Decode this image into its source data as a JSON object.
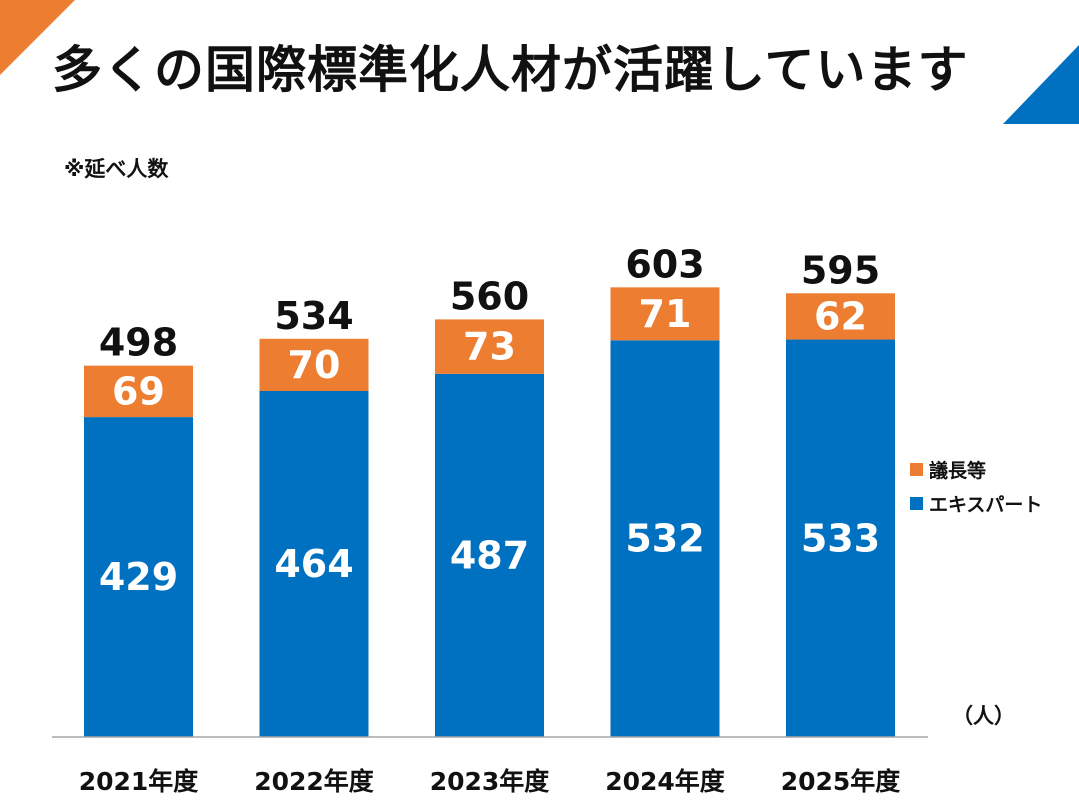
{
  "title": "多くの国際標準化人材が活躍しています",
  "note": "※延べ人数",
  "unit": "（人）",
  "colors": {
    "accent_orange": "#ED7D31",
    "accent_blue": "#0070C0"
  },
  "chart_data": {
    "type": "bar",
    "stacked": true,
    "categories": [
      "2021年度",
      "2022年度",
      "2023年度",
      "2024年度",
      "2025年度"
    ],
    "series": [
      {
        "name": "エキスパート",
        "values": [
          429,
          464,
          487,
          532,
          533
        ],
        "color": "#0070C0"
      },
      {
        "name": "議長等",
        "values": [
          69,
          70,
          73,
          71,
          62
        ],
        "color": "#ED7D31"
      }
    ],
    "totals": [
      498,
      534,
      560,
      603,
      595
    ],
    "legend_order": [
      "議長等",
      "エキスパート"
    ],
    "legend_position": "right",
    "ylim": [
      0,
      700
    ],
    "grid": false
  }
}
